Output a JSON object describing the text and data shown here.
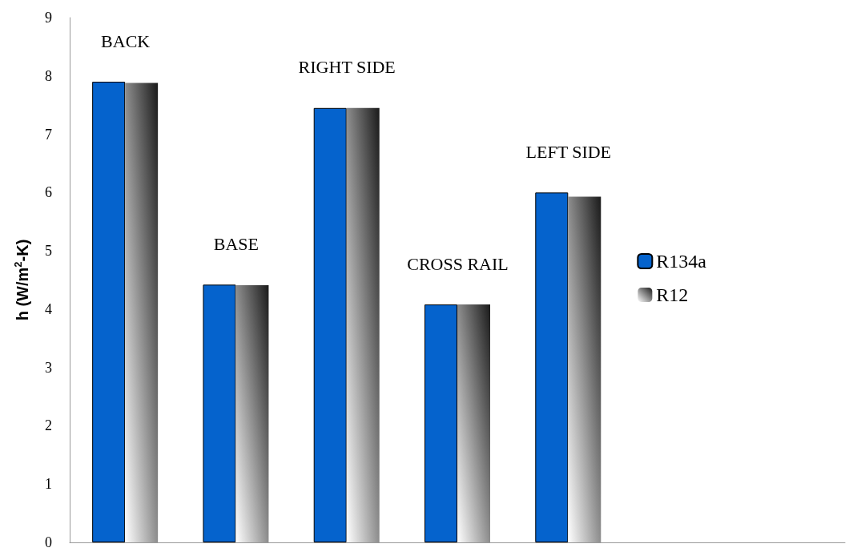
{
  "chart_data": {
    "type": "bar",
    "ylabel": "h (W/m$^{2}$-K)",
    "categories": [
      "BACK",
      "BASE",
      "RIGHT SIDE",
      "CROSS RAIL",
      "LEFT SIDE",
      null,
      null
    ],
    "series": [
      {
        "name": "R134a",
        "color": "#0563cd",
        "values": [
          7.9,
          4.42,
          7.45,
          4.08,
          6.0,
          null,
          null
        ]
      },
      {
        "name": "R12",
        "color": "#1a1a1a",
        "values": [
          7.88,
          4.41,
          7.45,
          4.08,
          5.93,
          null,
          null
        ]
      }
    ],
    "ylim": [
      0,
      9
    ],
    "yticks": [
      0,
      1,
      2,
      3,
      4,
      5,
      6,
      7,
      8,
      9
    ],
    "grid": false,
    "legend": "right"
  }
}
